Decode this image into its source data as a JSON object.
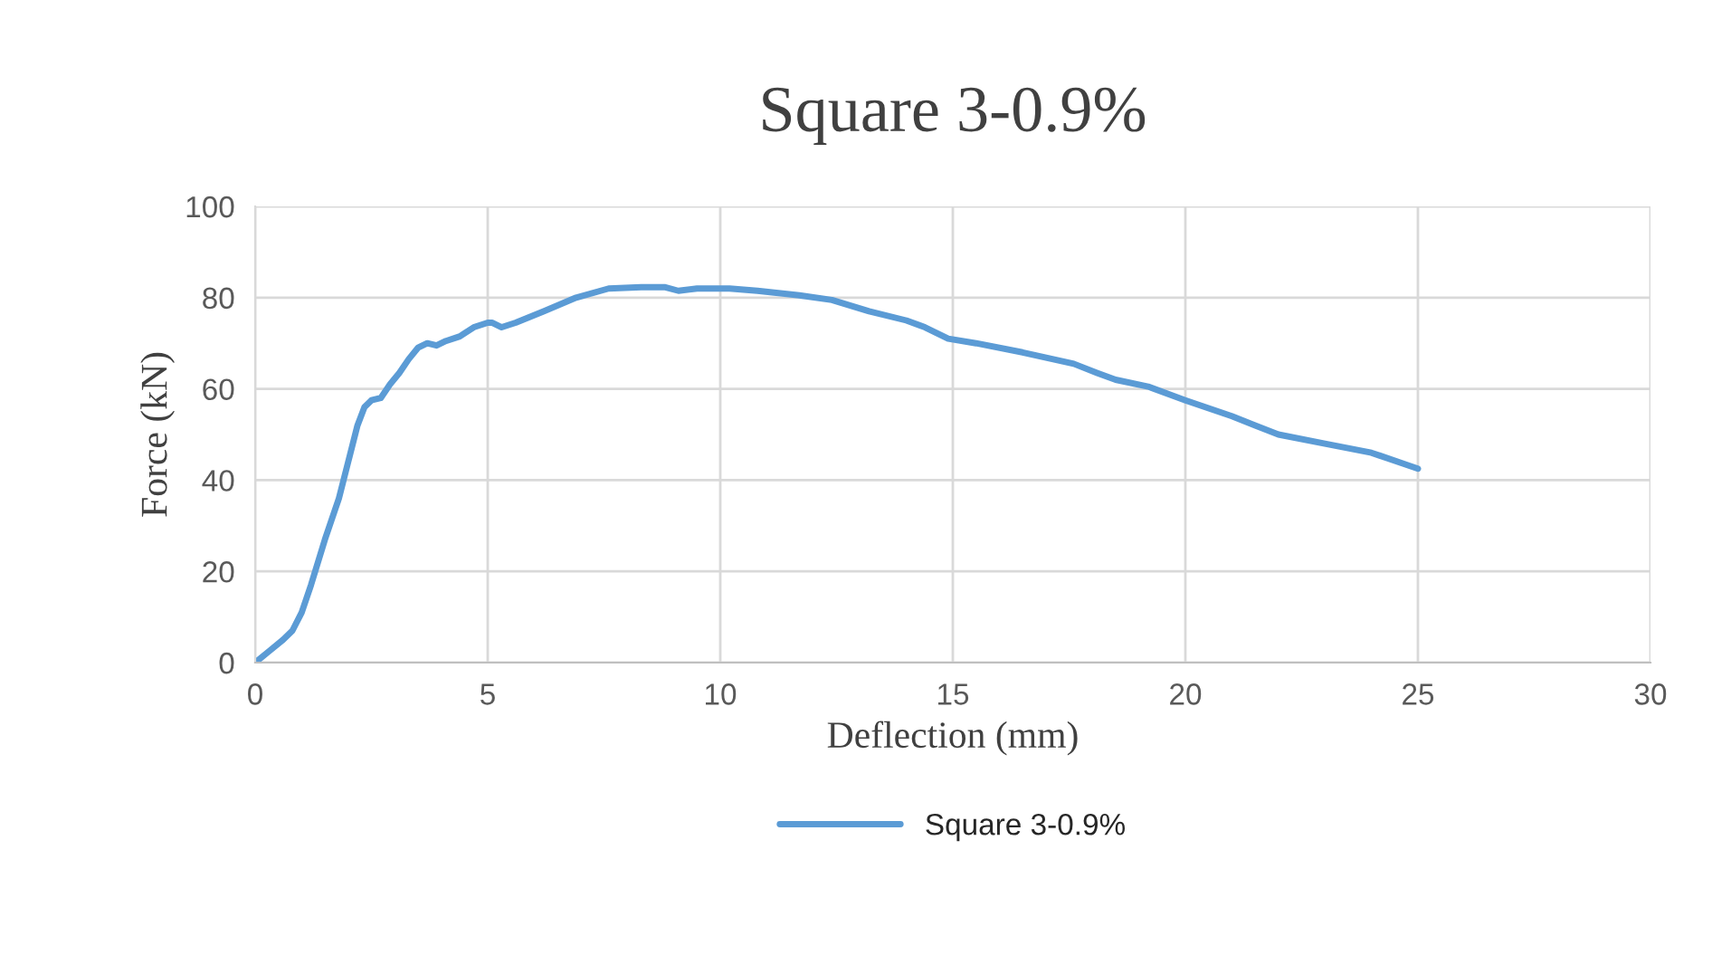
{
  "chart_data": {
    "type": "line",
    "title": "Square 3-0.9%",
    "xlabel": "Deflection (mm)",
    "ylabel": "Force (kN)",
    "xlim": [
      0,
      30
    ],
    "xticks": [
      0,
      5,
      10,
      15,
      20,
      25,
      30
    ],
    "ylim": [
      0,
      100
    ],
    "yticks": [
      0,
      20,
      40,
      60,
      80,
      100
    ],
    "grid": true,
    "legend": "bottom",
    "marker": "none",
    "line_style": "solid",
    "series": [
      {
        "name": "Square 3-0.9%",
        "color": "#5b9bd5",
        "x": [
          0,
          0.3,
          0.6,
          0.8,
          1.0,
          1.2,
          1.5,
          1.8,
          2.0,
          2.2,
          2.35,
          2.5,
          2.7,
          2.9,
          3.1,
          3.3,
          3.5,
          3.7,
          3.9,
          4.1,
          4.4,
          4.7,
          5.0,
          5.1,
          5.3,
          5.6,
          6.2,
          6.9,
          7.6,
          8.3,
          8.8,
          9.1,
          9.5,
          10.2,
          10.8,
          11.7,
          12.4,
          13.2,
          14.0,
          14.4,
          14.9,
          15.5,
          16.5,
          17.6,
          18.1,
          18.5,
          19.2,
          20.0,
          21.0,
          21.5,
          22.0,
          23.0,
          24.0,
          25.0
        ],
        "values": [
          0,
          2.5,
          5,
          7,
          11,
          17,
          27,
          36,
          44,
          52,
          56,
          57.5,
          58,
          61,
          63.5,
          66.5,
          69,
          70,
          69.5,
          70.5,
          71.5,
          73.5,
          74.5,
          74.5,
          73.5,
          74.5,
          77,
          80,
          82,
          82.3,
          82.3,
          81.5,
          82,
          82,
          81.5,
          80.5,
          79.5,
          77,
          75,
          73.5,
          71,
          70,
          68,
          65.5,
          63.5,
          62,
          60.5,
          57.5,
          54,
          52,
          50,
          48,
          46,
          42.5
        ]
      }
    ]
  }
}
